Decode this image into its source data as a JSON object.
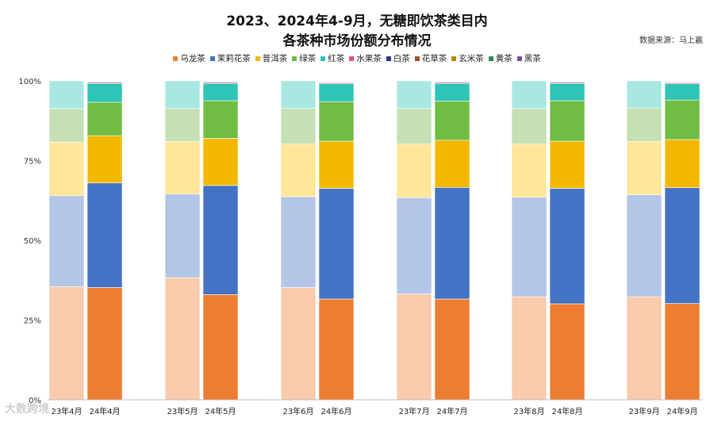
{
  "title_line1": "2023、2024年4-9月，无糖即饮茶类目内",
  "title_line2": "各茶种市场份额分布情况",
  "source": "数据来源：马上赢",
  "watermark": "大数跨境",
  "chart_data": {
    "type": "bar",
    "stacked": true,
    "percent": true,
    "title": "2023、2024年4-9月，无糖即饮茶类目内 各茶种市场份额分布情况",
    "ylim": [
      0,
      100
    ],
    "yticks": [
      "0%",
      "25%",
      "50%",
      "75%",
      "100%"
    ],
    "categories": [
      "23年4月",
      "24年4月",
      "23年5月",
      "24年5月",
      "23年6月",
      "24年6月",
      "23年7月",
      "24年7月",
      "23年8月",
      "24年8月",
      "23年9月",
      "24年9月"
    ],
    "legend_position": "top",
    "series": [
      {
        "name": "乌龙茶",
        "color_2024": "#ED7D31",
        "color_2023": "#F8CBAD",
        "values": [
          35.5,
          35.2,
          38.3,
          33.0,
          35.2,
          31.6,
          33.2,
          31.6,
          32.3,
          30.1,
          32.3,
          30.2
        ]
      },
      {
        "name": "茉莉花茶",
        "color_2024": "#4472C4",
        "color_2023": "#B4C6E7",
        "values": [
          28.5,
          32.8,
          26.2,
          34.2,
          28.5,
          34.7,
          30.2,
          35.0,
          31.2,
          36.2,
          32.0,
          36.3
        ]
      },
      {
        "name": "普洱茶",
        "color_2024": "#F2B800",
        "color_2023": "#FFE699",
        "values": [
          16.8,
          14.8,
          16.5,
          14.8,
          16.5,
          14.8,
          16.8,
          14.8,
          16.7,
          14.8,
          16.7,
          15.1
        ]
      },
      {
        "name": "绿茶",
        "color_2024": "#70BD44",
        "color_2023": "#C5E0B4",
        "values": [
          10.5,
          10.5,
          10.4,
          11.8,
          11.2,
          12.4,
          11.2,
          12.3,
          11.2,
          12.7,
          10.5,
          12.4
        ]
      },
      {
        "name": "红茶",
        "color_2024": "#2EC4B6",
        "color_2023": "#A9E8E2",
        "values": [
          8.7,
          5.9,
          8.6,
          5.4,
          8.6,
          5.6,
          8.6,
          5.5,
          8.6,
          5.4,
          8.5,
          5.1
        ]
      },
      {
        "name": "水果茶",
        "color_2024": "#E8546E",
        "color_2023": "#F6B8C4",
        "values": [
          0,
          0.3,
          0,
          0.3,
          0,
          0.3,
          0,
          0.3,
          0,
          0.3,
          0,
          0.3
        ]
      },
      {
        "name": "白茶",
        "color_2024": "#2B3A8F",
        "color_2023": "#9AA3CF",
        "values": [
          0,
          0.2,
          0,
          0.2,
          0,
          0.2,
          0,
          0.2,
          0,
          0.2,
          0,
          0.2
        ]
      },
      {
        "name": "花草茶",
        "color_2024": "#A0522D",
        "color_2023": "#D9A98A",
        "values": [
          0,
          0.1,
          0,
          0.1,
          0,
          0.1,
          0,
          0.1,
          0,
          0.1,
          0,
          0.1
        ]
      },
      {
        "name": "玄米茶",
        "color_2024": "#B8860B",
        "color_2023": "#E3CC8F",
        "values": [
          0,
          0.1,
          0,
          0.1,
          0,
          0.1,
          0,
          0.1,
          0,
          0.1,
          0,
          0.1
        ]
      },
      {
        "name": "黄茶",
        "color_2024": "#2E8B57",
        "color_2023": "#A3D1B5",
        "values": [
          0,
          0.05,
          0,
          0.05,
          0,
          0.05,
          0,
          0.05,
          0,
          0.05,
          0,
          0.05
        ]
      },
      {
        "name": "黑茶",
        "color_2024": "#7B4F9E",
        "color_2023": "#C6B2D8",
        "values": [
          0,
          0.05,
          0,
          0.05,
          0,
          0.05,
          0,
          0.05,
          0,
          0.05,
          0,
          0.05
        ]
      }
    ]
  }
}
